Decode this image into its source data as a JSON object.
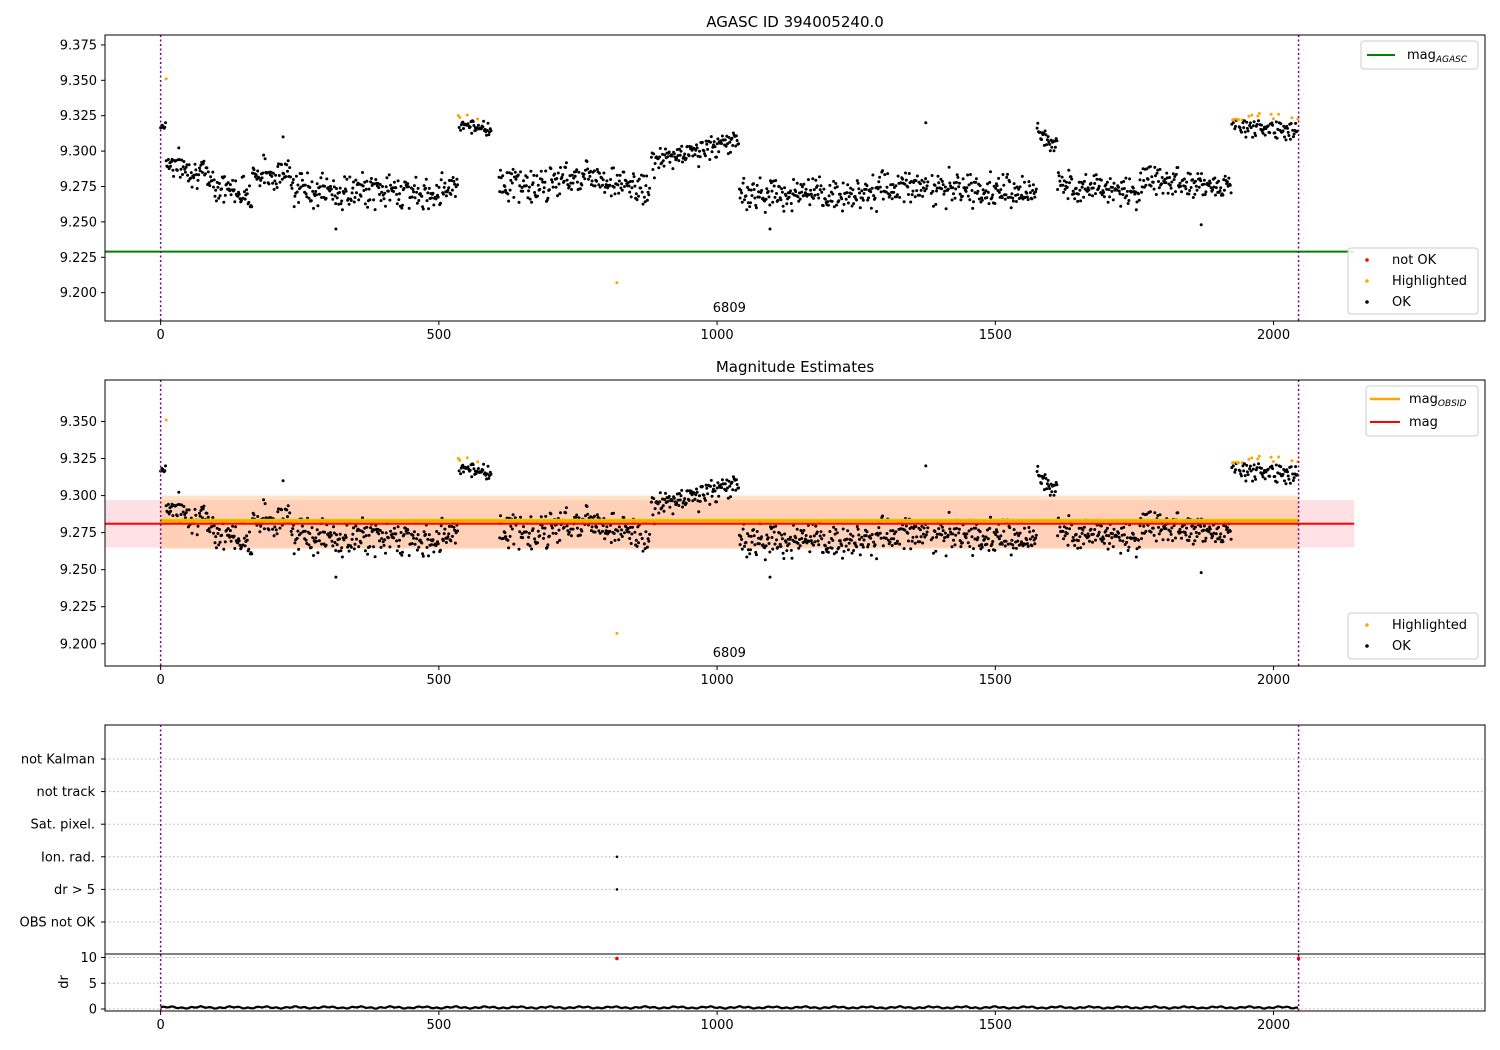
{
  "chart_data": [
    {
      "type": "scatter",
      "title": "AGASC ID 394005240.0",
      "xlim": [
        -100,
        2380
      ],
      "ylim": [
        9.18,
        9.382
      ],
      "xticks": [
        0,
        500,
        1000,
        1500,
        2000
      ],
      "yticks": [
        9.2,
        9.225,
        9.25,
        9.275,
        9.3,
        9.325,
        9.35,
        9.375
      ],
      "ytick_labels": [
        "9.200",
        "9.225",
        "9.250",
        "9.275",
        "9.300",
        "9.325",
        "9.350",
        "9.375"
      ],
      "obs_boundaries": [
        0,
        2045
      ],
      "obsid_label": {
        "text": "6809",
        "x": 1022
      },
      "reference_lines": [
        {
          "name": "mag_AGASC",
          "y": 9.229,
          "x_range": [
            -100,
            2145
          ],
          "color": "#008000"
        }
      ],
      "legends": [
        {
          "position": "upper-right",
          "entries": [
            {
              "label": "mag",
              "subscript": "AGASC",
              "marker": "line",
              "color": "#008000"
            }
          ]
        },
        {
          "position": "lower-right",
          "entries": [
            {
              "label": "not OK",
              "marker": "dot",
              "color": "#ff0000"
            },
            {
              "label": "Highlighted",
              "marker": "dot",
              "color": "#ffa500"
            },
            {
              "label": "OK",
              "marker": "dot",
              "color": "#000000"
            }
          ]
        }
      ]
    },
    {
      "type": "scatter",
      "title": "Magnitude Estimates",
      "xlim": [
        -100,
        2380
      ],
      "ylim": [
        9.185,
        9.378
      ],
      "xticks": [
        0,
        500,
        1000,
        1500,
        2000
      ],
      "yticks": [
        9.2,
        9.225,
        9.25,
        9.275,
        9.3,
        9.325,
        9.35
      ],
      "ytick_labels": [
        "9.200",
        "9.225",
        "9.250",
        "9.275",
        "9.300",
        "9.325",
        "9.350"
      ],
      "obs_boundaries": [
        0,
        2045
      ],
      "obsid_label": {
        "text": "6809",
        "x": 1022
      },
      "mag": {
        "y": 9.281,
        "band": [
          9.265,
          9.297
        ],
        "x_range": [
          -100,
          2145
        ],
        "color": "#ff0000"
      },
      "mag_obsid": {
        "y": 9.283,
        "band": [
          9.264,
          9.3
        ],
        "x_range": [
          0,
          2045
        ],
        "color": "#ffa500"
      },
      "legends": [
        {
          "position": "upper-right",
          "entries": [
            {
              "label": "mag",
              "subscript": "OBSID",
              "marker": "line",
              "color": "#ffa500"
            },
            {
              "label": "mag",
              "subscript": "",
              "marker": "line",
              "color": "#ff0000"
            }
          ]
        },
        {
          "position": "lower-right",
          "entries": [
            {
              "label": "Highlighted",
              "marker": "dot",
              "color": "#ffa500"
            },
            {
              "label": "OK",
              "marker": "dot",
              "color": "#000000"
            }
          ]
        }
      ]
    },
    {
      "type": "scatter",
      "title": "",
      "xlim": [
        -100,
        2380
      ],
      "xticks": [
        0,
        500,
        1000,
        1500,
        2000
      ],
      "obs_boundaries": [
        0,
        2045
      ],
      "flag_rows": [
        "not Kalman",
        "not track",
        "Sat. pixel.",
        "Ion. rad.",
        "dr > 5",
        "OBS not OK"
      ],
      "flag_points": [
        {
          "flag": "Ion. rad.",
          "x": 820
        },
        {
          "flag": "dr > 5",
          "x": 820
        }
      ]
    },
    {
      "type": "line",
      "title": "",
      "ylabel": "dr",
      "xlim": [
        -100,
        2380
      ],
      "ylim": [
        -0.5,
        10.5
      ],
      "xticks": [
        0,
        500,
        1000,
        1500,
        2000
      ],
      "yticks": [
        0,
        5,
        10
      ],
      "baseline": 0.3,
      "not_ok_points": [
        {
          "x": 820,
          "y": 9.8
        },
        {
          "x": 2045,
          "y": 9.8
        }
      ]
    }
  ],
  "series_segments": [
    {
      "x0": 0,
      "x1": 10,
      "base": 9.318,
      "trend": 0,
      "noise": 0.004,
      "highlight_above": 9.322
    },
    {
      "x0": 10,
      "x1": 95,
      "base": 9.287,
      "trend": -0.012,
      "noise": 0.009,
      "highlight_above": 9.32
    },
    {
      "x0": 95,
      "x1": 165,
      "base": 9.273,
      "trend": -0.006,
      "noise": 0.009,
      "highlight_above": 9.32
    },
    {
      "x0": 165,
      "x1": 240,
      "base": 9.284,
      "trend": 0.0,
      "noise": 0.01,
      "highlight_above": 9.32
    },
    {
      "x0": 240,
      "x1": 340,
      "base": 9.272,
      "trend": -0.004,
      "noise": 0.011,
      "highlight_above": 9.32
    },
    {
      "x0": 340,
      "x1": 460,
      "base": 9.272,
      "trend": 0.0,
      "noise": 0.01,
      "highlight_above": 9.32
    },
    {
      "x0": 460,
      "x1": 535,
      "base": 9.272,
      "trend": 0.012,
      "noise": 0.009,
      "highlight_above": 9.32
    },
    {
      "x0": 535,
      "x1": 595,
      "base": 9.318,
      "trend": -0.006,
      "noise": 0.005,
      "highlight_above": 9.322
    },
    {
      "x0": 608,
      "x1": 700,
      "base": 9.276,
      "trend": -0.006,
      "noise": 0.011,
      "highlight_above": 9.32
    },
    {
      "x0": 700,
      "x1": 790,
      "base": 9.282,
      "trend": 0.006,
      "noise": 0.01,
      "highlight_above": 9.32
    },
    {
      "x0": 790,
      "x1": 880,
      "base": 9.276,
      "trend": -0.008,
      "noise": 0.01,
      "highlight_above": 9.32
    },
    {
      "x0": 882,
      "x1": 1040,
      "base": 9.3,
      "trend": 0.016,
      "noise": 0.008,
      "highlight_above": 9.322
    },
    {
      "x0": 1040,
      "x1": 1180,
      "base": 9.27,
      "trend": 0.0,
      "noise": 0.01,
      "highlight_above": 9.32
    },
    {
      "x0": 1180,
      "x1": 1380,
      "base": 9.272,
      "trend": 0.01,
      "noise": 0.01,
      "highlight_above": 9.32
    },
    {
      "x0": 1385,
      "x1": 1575,
      "base": 9.272,
      "trend": -0.003,
      "noise": 0.01,
      "highlight_above": 9.32
    },
    {
      "x0": 1575,
      "x1": 1612,
      "base": 9.308,
      "trend": -0.01,
      "noise": 0.006,
      "highlight_above": 9.322
    },
    {
      "x0": 1612,
      "x1": 1760,
      "base": 9.274,
      "trend": -0.008,
      "noise": 0.009,
      "highlight_above": 9.32
    },
    {
      "x0": 1760,
      "x1": 1925,
      "base": 9.278,
      "trend": -0.006,
      "noise": 0.01,
      "highlight_above": 9.32
    },
    {
      "x0": 1925,
      "x1": 2045,
      "base": 9.317,
      "trend": -0.005,
      "noise": 0.007,
      "highlight_above": 9.322
    }
  ],
  "outliers": [
    {
      "x": 10,
      "y": 9.351,
      "kind": "highlighted"
    },
    {
      "x": 820,
      "y": 9.207,
      "kind": "highlighted"
    },
    {
      "x": 1375,
      "y": 9.32,
      "kind": "ok"
    },
    {
      "x": 315,
      "y": 9.245,
      "kind": "ok"
    },
    {
      "x": 220,
      "y": 9.31,
      "kind": "ok"
    },
    {
      "x": 1095,
      "y": 9.245,
      "kind": "ok"
    },
    {
      "x": 1870,
      "y": 9.248,
      "kind": "ok"
    }
  ]
}
